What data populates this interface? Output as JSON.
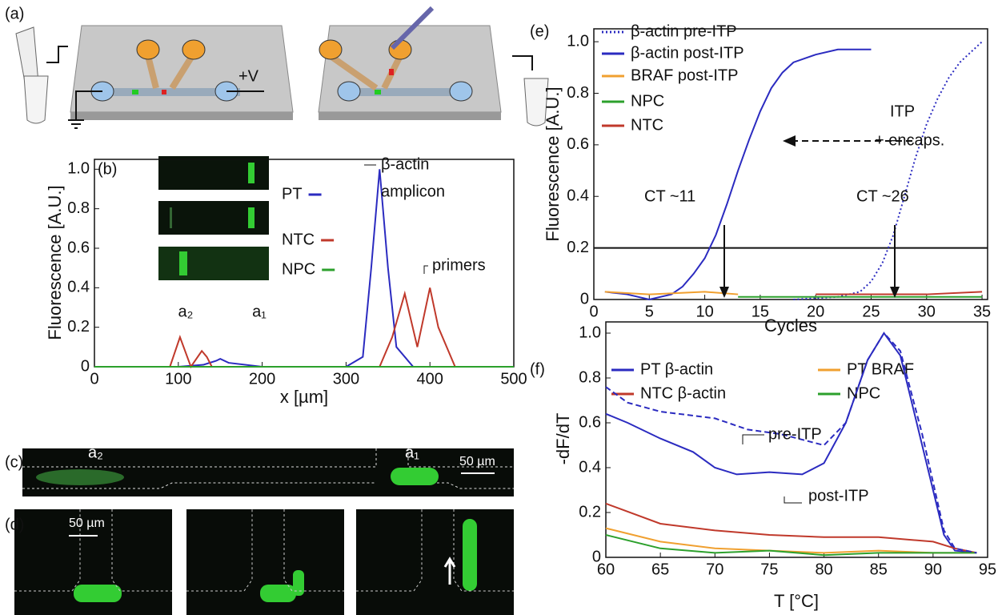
{
  "panels": {
    "a": {
      "label": "(a)",
      "voltage": "+V"
    },
    "c": {
      "label": "(c)",
      "left": "a₂",
      "right": "a₁",
      "scale": "50 µm"
    },
    "d": {
      "label": "(d)",
      "scale": "50 µm"
    }
  },
  "chart_data": [
    {
      "type": "line",
      "panel_label": "(b)",
      "xlabel": "x [µm]",
      "ylabel": "Fluorescence [A.U.]",
      "xlim": [
        0,
        500
      ],
      "xticks": [
        0,
        100,
        200,
        300,
        400,
        500
      ],
      "ylim": [
        0,
        1.05
      ],
      "yticks": [
        0,
        0.2,
        0.4,
        0.6,
        0.8,
        {
          "value": 1,
          "label": "1.0"
        }
      ],
      "inset_labels": [
        "a₂",
        "a₁"
      ],
      "annotations": [
        "β-actin",
        "amplicon",
        "primers"
      ],
      "series": [
        {
          "name": "PT",
          "color": "#2b2bc0",
          "x": [
            0,
            100,
            130,
            145,
            150,
            160,
            200,
            300,
            320,
            330,
            340,
            350,
            360,
            380,
            500
          ],
          "values": [
            0,
            0,
            0.01,
            0.03,
            0.04,
            0.02,
            0,
            0,
            0.05,
            0.5,
            1.0,
            0.5,
            0.1,
            0,
            0
          ]
        },
        {
          "name": "NTC",
          "color": "#c0392b",
          "x": [
            0,
            90,
            102,
            115,
            128,
            134,
            140,
            340,
            355,
            370,
            385,
            390,
            400,
            410,
            430,
            500
          ],
          "values": [
            0,
            0,
            0.15,
            0,
            0.08,
            0.05,
            0,
            0,
            0.15,
            0.37,
            0.1,
            0.2,
            0.4,
            0.2,
            0,
            0
          ]
        },
        {
          "name": "NPC",
          "color": "#2ca02c",
          "x": [
            0,
            500
          ],
          "values": [
            0,
            0
          ]
        }
      ]
    },
    {
      "type": "line",
      "panel_label": "(e)",
      "xlabel": "Cycles",
      "ylabel": "Fluorescence [A.U.]",
      "xlim": [
        0,
        35.5
      ],
      "xticks": [
        0,
        5,
        10,
        15,
        20,
        25,
        30,
        35
      ],
      "ylim": [
        0,
        1.05
      ],
      "yticks": [
        0,
        0.2,
        0.4,
        0.6,
        0.8,
        {
          "value": 1,
          "label": "1.0"
        }
      ],
      "threshold": 0.2,
      "annotations": [
        "ITP",
        "+ encaps.",
        "CT ~11",
        "CT ~26"
      ],
      "series": [
        {
          "name": "β-actin pre-ITP",
          "color": "#2b2bc0",
          "dash": "dotted",
          "x": [
            18,
            22,
            24,
            25,
            26,
            27,
            28,
            29,
            30,
            31,
            32,
            33,
            34,
            35
          ],
          "values": [
            0,
            0.01,
            0.03,
            0.07,
            0.14,
            0.25,
            0.4,
            0.55,
            0.68,
            0.78,
            0.86,
            0.92,
            0.96,
            1.0
          ]
        },
        {
          "name": "β-actin post-ITP",
          "color": "#2b2bc0",
          "x": [
            1,
            3,
            5,
            7,
            8,
            9,
            10,
            11,
            12,
            13,
            14,
            15,
            16,
            17,
            18,
            20,
            22,
            25
          ],
          "values": [
            0.03,
            0.02,
            0,
            0.02,
            0.05,
            0.1,
            0.16,
            0.25,
            0.37,
            0.5,
            0.62,
            0.73,
            0.82,
            0.88,
            0.92,
            0.95,
            0.97,
            0.97
          ]
        },
        {
          "name": "BRAF post-ITP",
          "color": "#f0a030",
          "x": [
            1,
            5,
            10,
            13
          ],
          "values": [
            0.03,
            0.02,
            0.03,
            0.02
          ]
        },
        {
          "name": "NPC",
          "color": "#2ca02c",
          "x": [
            13,
            20,
            25,
            30,
            35
          ],
          "values": [
            0.01,
            0.01,
            0.01,
            0.01,
            0.01
          ]
        },
        {
          "name": "NTC",
          "color": "#c0392b",
          "x": [
            20,
            25,
            30,
            35
          ],
          "values": [
            0.02,
            0.02,
            0.02,
            0.03
          ]
        }
      ]
    },
    {
      "type": "line",
      "panel_label": "(f)",
      "xlabel": "T [°C]",
      "ylabel": "-dF/dT",
      "xlim": [
        60,
        95
      ],
      "xticks": [
        60,
        65,
        70,
        75,
        80,
        85,
        90,
        95
      ],
      "ylim": [
        0,
        1.05
      ],
      "yticks": [
        0,
        0.2,
        0.4,
        0.6,
        0.8,
        {
          "value": 1,
          "label": "1.0"
        }
      ],
      "annotations": [
        "post-ITP"
      ],
      "series": [
        {
          "name": "PT β-actin",
          "color": "#2b2bc0",
          "x": [
            60,
            62,
            65,
            68,
            70,
            72,
            75,
            78,
            80,
            82,
            84,
            85.5,
            87,
            89,
            91,
            92,
            94
          ],
          "values": [
            0.64,
            0.6,
            0.53,
            0.47,
            0.4,
            0.37,
            0.38,
            0.37,
            0.42,
            0.6,
            0.88,
            1.0,
            0.9,
            0.5,
            0.1,
            0.03,
            0.02
          ]
        },
        {
          "name": "NTC β-actin",
          "color": "#c0392b",
          "x": [
            60,
            65,
            70,
            75,
            80,
            85,
            90,
            92,
            94
          ],
          "values": [
            0.24,
            0.15,
            0.12,
            0.1,
            0.09,
            0.09,
            0.07,
            0.04,
            0.02
          ]
        },
        {
          "name": "PT BRAF",
          "color": "#f0a030",
          "x": [
            60,
            65,
            70,
            75,
            80,
            85,
            90,
            94
          ],
          "values": [
            0.13,
            0.07,
            0.04,
            0.03,
            0.02,
            0.03,
            0.02,
            0.02
          ]
        },
        {
          "name": "NPC",
          "color": "#2ca02c",
          "x": [
            60,
            65,
            70,
            75,
            80,
            85,
            90,
            94
          ],
          "values": [
            0.1,
            0.04,
            0.02,
            0.03,
            0.01,
            0.02,
            0.02,
            0.02
          ]
        },
        {
          "name": "pre-ITP",
          "color": "#2b2bc0",
          "dash": "dashed",
          "in_legend": false,
          "x": [
            60,
            62,
            65,
            70,
            73,
            76,
            80,
            82,
            84,
            85.5,
            87,
            89,
            91,
            92,
            94
          ],
          "values": [
            0.76,
            0.69,
            0.65,
            0.62,
            0.57,
            0.55,
            0.5,
            0.6,
            0.88,
            1.0,
            0.92,
            0.55,
            0.12,
            0.04,
            0.02
          ]
        }
      ]
    }
  ]
}
